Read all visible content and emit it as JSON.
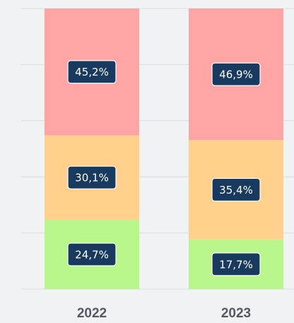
{
  "chart_data": {
    "type": "stacked_bar",
    "categories": [
      "2022",
      "2023"
    ],
    "series": [
      {
        "color": "#b9f78c",
        "values": [
          24.7,
          17.7
        ],
        "value_labels": [
          "24,7%",
          "17,7%"
        ]
      },
      {
        "color": "#ffd18d",
        "values": [
          30.1,
          35.4
        ],
        "value_labels": [
          "30,1%",
          "35,4%"
        ]
      },
      {
        "color": "#ffa5a6",
        "values": [
          45.2,
          46.9
        ],
        "value_labels": [
          "45,2%",
          "46,9%"
        ]
      }
    ],
    "ylim": [
      0,
      100
    ],
    "yticks": [
      0,
      20,
      40,
      60,
      80,
      100
    ],
    "grid": true
  }
}
